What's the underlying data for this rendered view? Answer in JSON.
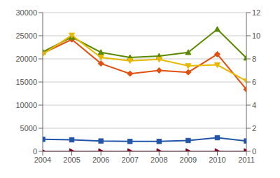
{
  "chart_data": {
    "type": "line",
    "x": [
      2004,
      2005,
      2006,
      2007,
      2008,
      2009,
      2010,
      2011
    ],
    "xlim": [
      2004,
      2011
    ],
    "xticks": [
      2004,
      2005,
      2006,
      2007,
      2008,
      2009,
      2010,
      2011
    ],
    "ylim": [
      0,
      30000
    ],
    "yticks": [
      0,
      5000,
      10000,
      15000,
      20000,
      25000,
      30000
    ],
    "y2lim": [
      0,
      12
    ],
    "y2ticks": [
      0,
      2,
      4,
      6,
      8,
      10,
      12
    ],
    "grid": true,
    "series": [
      {
        "color": "#e05010",
        "marker": "diamond",
        "values": [
          21200,
          24200,
          19000,
          16800,
          17500,
          17100,
          21000,
          13400
        ]
      },
      {
        "color": "#5a8a00",
        "marker": "triangle_up",
        "values": [
          21500,
          24700,
          21400,
          20300,
          20600,
          21400,
          26400,
          20200
        ]
      },
      {
        "color": "#e8b800",
        "marker": "triangle_down",
        "values": [
          21000,
          25100,
          20300,
          19600,
          19900,
          18500,
          18700,
          15200
        ]
      },
      {
        "color": "#2255aa",
        "marker": "square",
        "values": [
          2600,
          2500,
          2250,
          2150,
          2150,
          2350,
          2950,
          2250
        ]
      },
      {
        "color": "#7a0020",
        "marker": "triangle_right",
        "values": [
          0,
          0,
          0,
          0,
          0,
          0,
          0,
          0
        ]
      }
    ]
  }
}
